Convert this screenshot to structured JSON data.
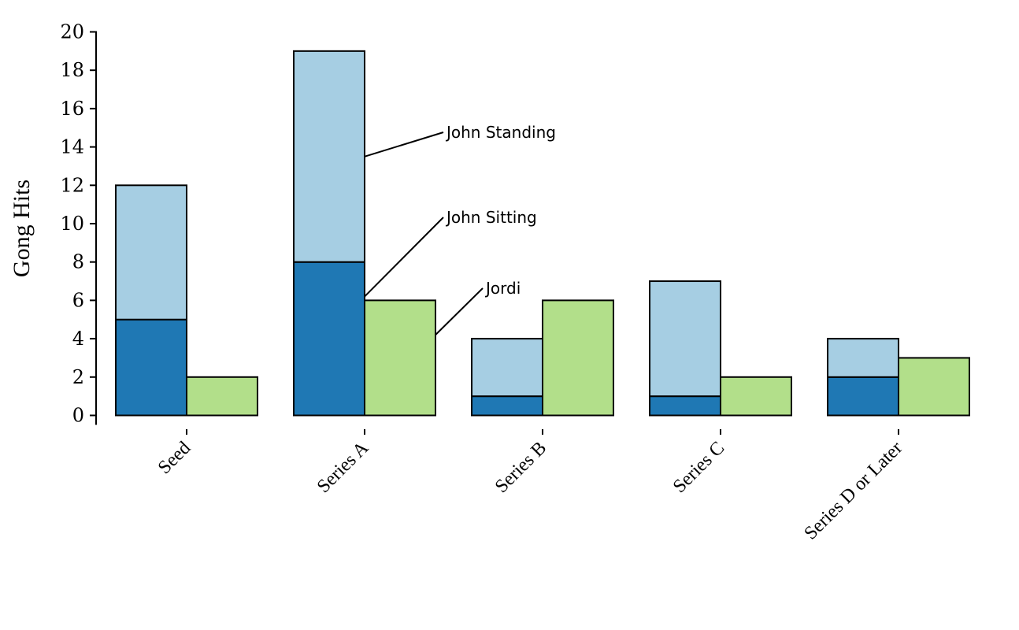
{
  "chart_data": {
    "type": "bar",
    "categories": [
      "Seed",
      "Series A",
      "Series B",
      "Series C",
      "Series D or Later"
    ],
    "series": [
      {
        "name": "John Sitting",
        "stack": "john",
        "color": "#1f78b4",
        "values": [
          5,
          8,
          1,
          1,
          2
        ]
      },
      {
        "name": "John Standing",
        "stack": "john",
        "color": "#a6cee3",
        "values": [
          7,
          11,
          3,
          6,
          2
        ]
      },
      {
        "name": "Jordi",
        "stack": "jordi",
        "color": "#b2df8a",
        "values": [
          2,
          6,
          6,
          2,
          3
        ]
      }
    ],
    "xlabel": "",
    "ylabel": "Gong Hits",
    "ylim": [
      0,
      20
    ],
    "yticks": [
      0,
      2,
      4,
      6,
      8,
      10,
      12,
      14,
      16,
      18,
      20
    ],
    "grid": false,
    "legend": "inline annotations on Series A bars",
    "annotations": [
      {
        "text": "John Standing",
        "series": "John Standing",
        "category": "Series A"
      },
      {
        "text": "John Sitting",
        "series": "John Sitting",
        "category": "Series A"
      },
      {
        "text": "Jordi",
        "series": "Jordi",
        "category": "Series A"
      }
    ]
  }
}
